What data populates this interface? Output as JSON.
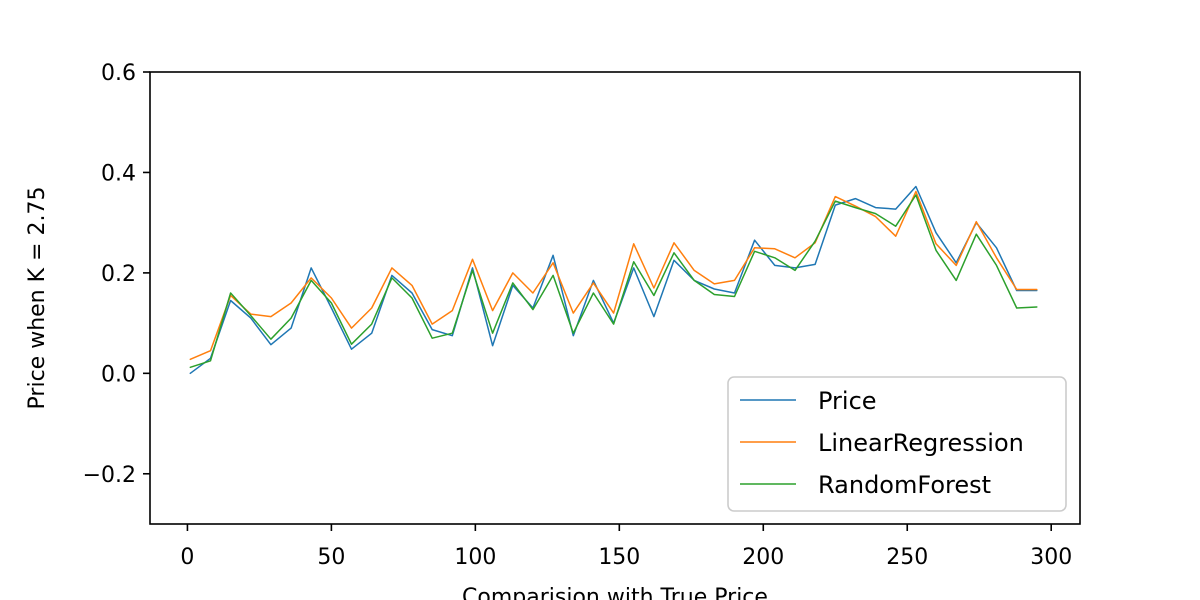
{
  "chart_data": {
    "type": "line",
    "title": "",
    "xlabel": "Comparision with True Price",
    "ylabel": "Price when K = 2.75",
    "xlim": [
      -13,
      310
    ],
    "ylim": [
      -0.3,
      0.6
    ],
    "x_ticks": [
      0,
      50,
      100,
      150,
      200,
      250,
      300
    ],
    "y_ticks": [
      -0.2,
      0.0,
      0.2,
      0.4,
      0.6
    ],
    "y_tick_labels": [
      "−0.2",
      "0.0",
      "0.2",
      "0.4",
      "0.6"
    ],
    "grid": false,
    "legend_position": "lower-right",
    "x": [
      1,
      8,
      15,
      22,
      29,
      36,
      43,
      50,
      57,
      64,
      71,
      78,
      85,
      92,
      99,
      106,
      113,
      120,
      127,
      134,
      141,
      148,
      155,
      162,
      169,
      176,
      183,
      190,
      197,
      204,
      211,
      218,
      225,
      232,
      239,
      246,
      253,
      260,
      267,
      274,
      281,
      288,
      295
    ],
    "series": [
      {
        "name": "Price",
        "color": "#1f77b4",
        "values": [
          0.0,
          0.03,
          0.145,
          0.11,
          0.057,
          0.09,
          0.21,
          0.13,
          0.048,
          0.08,
          0.195,
          0.16,
          0.087,
          0.075,
          0.21,
          0.055,
          0.175,
          0.13,
          0.235,
          0.075,
          0.185,
          0.1,
          0.21,
          0.113,
          0.225,
          0.185,
          0.168,
          0.16,
          0.265,
          0.215,
          0.21,
          0.217,
          0.335,
          0.348,
          0.33,
          0.327,
          0.372,
          0.28,
          0.22,
          0.3,
          0.25,
          0.165,
          0.165
        ]
      },
      {
        "name": "LinearRegression",
        "color": "#ff7f0e",
        "values": [
          0.028,
          0.045,
          0.155,
          0.118,
          0.113,
          0.14,
          0.19,
          0.15,
          0.09,
          0.13,
          0.21,
          0.175,
          0.098,
          0.125,
          0.227,
          0.125,
          0.2,
          0.16,
          0.22,
          0.12,
          0.18,
          0.12,
          0.258,
          0.17,
          0.26,
          0.205,
          0.178,
          0.185,
          0.25,
          0.248,
          0.23,
          0.26,
          0.352,
          0.333,
          0.312,
          0.273,
          0.362,
          0.258,
          0.215,
          0.302,
          0.23,
          0.167,
          0.167
        ]
      },
      {
        "name": "RandomForest",
        "color": "#2ca02c",
        "values": [
          0.012,
          0.025,
          0.16,
          0.115,
          0.068,
          0.11,
          0.185,
          0.14,
          0.058,
          0.098,
          0.19,
          0.15,
          0.07,
          0.08,
          0.205,
          0.08,
          0.18,
          0.127,
          0.195,
          0.08,
          0.16,
          0.098,
          0.222,
          0.155,
          0.24,
          0.185,
          0.157,
          0.153,
          0.243,
          0.23,
          0.205,
          0.263,
          0.343,
          0.33,
          0.318,
          0.293,
          0.355,
          0.245,
          0.185,
          0.277,
          0.215,
          0.13,
          0.132
        ]
      }
    ]
  }
}
